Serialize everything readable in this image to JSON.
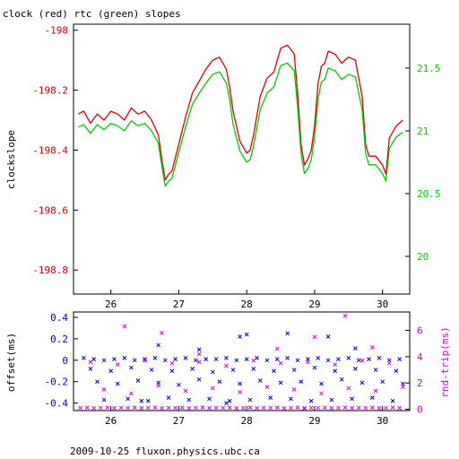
{
  "title": "clock (red) rtc (green) slopes",
  "footer": "2009-10-25 fluxon.physics.ubc.ca",
  "colors": {
    "clock": "#e00000",
    "rtc": "#00cc00",
    "offset": "#0000dd",
    "rnd_trip": "#dd00dd",
    "axis": "#000000",
    "left_ticks_top": "#cc0000",
    "right_ticks_top": "#00cc00",
    "left_ticks_bottom": "#0000cc",
    "right_ticks_bottom": "#cc00cc"
  },
  "chart_data": [
    {
      "type": "line",
      "title": "clock (red) rtc (green) slopes",
      "ylabel": "clockslope",
      "xlim": [
        25.45,
        30.4
      ],
      "ylim": [
        -198.88,
        -197.98
      ],
      "y2lim": [
        19.7,
        21.85
      ],
      "xticks": [
        26,
        27,
        28,
        29,
        30
      ],
      "yticks": [
        -198,
        -198.2,
        -198.4,
        -198.6,
        -198.8
      ],
      "ytick_labels": [
        "-198",
        "-198.2",
        "-198.4",
        "-198.6",
        "-198.8"
      ],
      "y2ticks": [
        20,
        20.5,
        21,
        21.5
      ],
      "y2tick_labels": [
        "20",
        "20.5",
        "21",
        "21.5"
      ],
      "series": [
        {
          "name": "clock",
          "axis": "left",
          "color": "#e00000",
          "x": [
            25.52,
            25.6,
            25.7,
            25.8,
            25.9,
            26.0,
            26.1,
            26.2,
            26.3,
            26.4,
            26.5,
            26.6,
            26.7,
            26.75,
            26.8,
            26.85,
            26.9,
            27.0,
            27.1,
            27.2,
            27.3,
            27.4,
            27.5,
            27.6,
            27.7,
            27.75,
            27.8,
            27.9,
            28.0,
            28.05,
            28.1,
            28.2,
            28.3,
            28.4,
            28.5,
            28.6,
            28.7,
            28.75,
            28.8,
            28.85,
            28.9,
            28.95,
            29.0,
            29.05,
            29.1,
            29.15,
            29.2,
            29.3,
            29.4,
            29.5,
            29.6,
            29.7,
            29.75,
            29.8,
            29.9,
            30.0,
            30.05,
            30.1,
            30.2,
            30.3
          ],
          "y": [
            -198.28,
            -198.27,
            -198.31,
            -198.28,
            -198.3,
            -198.27,
            -198.28,
            -198.3,
            -198.26,
            -198.28,
            -198.27,
            -198.3,
            -198.35,
            -198.43,
            -198.5,
            -198.48,
            -198.47,
            -198.38,
            -198.29,
            -198.21,
            -198.17,
            -198.13,
            -198.1,
            -198.09,
            -198.13,
            -198.19,
            -198.27,
            -198.37,
            -198.41,
            -198.4,
            -198.35,
            -198.22,
            -198.16,
            -198.14,
            -198.06,
            -198.05,
            -198.08,
            -198.21,
            -198.38,
            -198.45,
            -198.43,
            -198.4,
            -198.32,
            -198.18,
            -198.12,
            -198.11,
            -198.07,
            -198.08,
            -198.11,
            -198.09,
            -198.1,
            -198.22,
            -198.38,
            -198.42,
            -198.42,
            -198.45,
            -198.48,
            -198.36,
            -198.32,
            -198.3
          ]
        },
        {
          "name": "rtc",
          "axis": "right",
          "color": "#00cc00",
          "x": [
            25.52,
            25.6,
            25.7,
            25.8,
            25.9,
            26.0,
            26.1,
            26.2,
            26.3,
            26.4,
            26.5,
            26.6,
            26.7,
            26.75,
            26.8,
            26.85,
            26.9,
            27.0,
            27.1,
            27.2,
            27.3,
            27.4,
            27.5,
            27.6,
            27.7,
            27.75,
            27.8,
            27.9,
            28.0,
            28.05,
            28.1,
            28.2,
            28.3,
            28.4,
            28.5,
            28.6,
            28.7,
            28.75,
            28.8,
            28.85,
            28.9,
            28.95,
            29.0,
            29.05,
            29.1,
            29.15,
            29.2,
            29.3,
            29.4,
            29.5,
            29.6,
            29.7,
            29.75,
            29.8,
            29.9,
            30.0,
            30.05,
            30.1,
            30.2,
            30.3
          ],
          "y": [
            21.03,
            21.05,
            20.98,
            21.05,
            21.01,
            21.06,
            21.04,
            21.0,
            21.08,
            21.04,
            21.06,
            21.0,
            20.9,
            20.72,
            20.56,
            20.6,
            20.62,
            20.83,
            21.03,
            21.21,
            21.3,
            21.38,
            21.45,
            21.47,
            21.38,
            21.25,
            21.05,
            20.84,
            20.75,
            20.77,
            20.88,
            21.17,
            21.3,
            21.35,
            21.52,
            21.54,
            21.48,
            21.19,
            20.82,
            20.66,
            20.7,
            20.77,
            20.95,
            21.25,
            21.39,
            21.41,
            21.5,
            21.48,
            21.41,
            21.45,
            21.43,
            21.17,
            20.82,
            20.73,
            20.73,
            20.66,
            20.6,
            20.86,
            20.95,
            20.99
          ]
        }
      ]
    },
    {
      "type": "scatter",
      "ylabel": "offset(ms)",
      "y2label": "rnd-trip(ms)",
      "xlim": [
        25.45,
        30.4
      ],
      "ylim": [
        -0.47,
        0.45
      ],
      "y2lim": [
        -0.1,
        7.4
      ],
      "xticks": [
        26,
        27,
        28,
        29,
        30
      ],
      "yticks": [
        0.4,
        0.2,
        0,
        -0.2,
        -0.4
      ],
      "ytick_labels": [
        "0.4",
        "0.2",
        "0",
        "-0.2",
        "-0.4"
      ],
      "y2ticks": [
        0,
        2,
        4,
        6
      ],
      "y2tick_labels": [
        "0",
        "2",
        "4",
        "6"
      ],
      "series": [
        {
          "name": "offset",
          "axis": "left",
          "marker": "x",
          "color": "#0000dd",
          "x": [
            25.6,
            25.75,
            25.9,
            26.05,
            26.2,
            26.35,
            26.5,
            26.65,
            26.8,
            26.95,
            27.1,
            27.25,
            27.4,
            27.55,
            27.7,
            27.85,
            28.0,
            28.15,
            28.3,
            28.45,
            28.6,
            28.75,
            28.9,
            29.05,
            29.2,
            29.35,
            29.5,
            29.65,
            29.8,
            29.95,
            30.1,
            30.25,
            25.7,
            26.0,
            26.3,
            26.6,
            26.9,
            27.2,
            27.5,
            27.8,
            28.1,
            28.4,
            28.7,
            29.0,
            29.3,
            29.6,
            29.9,
            30.2,
            25.8,
            26.1,
            26.4,
            26.7,
            27.0,
            27.3,
            27.6,
            27.9,
            28.2,
            28.5,
            28.8,
            29.1,
            29.4,
            29.7,
            30.0,
            30.3,
            25.9,
            26.25,
            26.55,
            26.85,
            27.15,
            27.45,
            27.75,
            28.05,
            28.35,
            28.65,
            28.95,
            29.25,
            29.55,
            29.85,
            30.15,
            26.7,
            27.3,
            27.9,
            28.6,
            28.0,
            29.2,
            29.6,
            26.45,
            28.85,
            27.7
          ],
          "y": [
            0.02,
            0.01,
            0.0,
            0.01,
            0.02,
            0.0,
            0.01,
            0.02,
            0.0,
            0.01,
            0.02,
            0.0,
            0.01,
            0.01,
            0.02,
            0.0,
            0.01,
            0.02,
            0.0,
            0.01,
            0.02,
            0.0,
            0.01,
            0.02,
            0.0,
            0.01,
            0.02,
            0.0,
            0.01,
            0.02,
            0.0,
            0.01,
            -0.08,
            -0.1,
            -0.07,
            -0.09,
            -0.1,
            -0.08,
            -0.11,
            -0.09,
            -0.08,
            -0.1,
            -0.09,
            -0.07,
            -0.1,
            -0.08,
            -0.09,
            -0.1,
            -0.2,
            -0.22,
            -0.19,
            -0.21,
            -0.23,
            -0.18,
            -0.2,
            -0.22,
            -0.19,
            -0.21,
            -0.2,
            -0.22,
            -0.18,
            -0.21,
            -0.2,
            -0.22,
            -0.37,
            -0.36,
            -0.38,
            -0.35,
            -0.37,
            -0.36,
            -0.38,
            -0.37,
            -0.35,
            -0.36,
            -0.38,
            -0.37,
            -0.36,
            -0.35,
            -0.38,
            0.14,
            0.1,
            0.22,
            0.25,
            0.24,
            0.22,
            0.11,
            -0.38,
            -0.45,
            -0.4
          ]
        },
        {
          "name": "rnd-trip",
          "axis": "right",
          "marker": "x",
          "color": "#dd00dd",
          "x": [
            25.55,
            25.65,
            25.75,
            25.85,
            25.95,
            26.05,
            26.15,
            26.25,
            26.35,
            26.45,
            26.55,
            26.65,
            26.75,
            26.85,
            26.95,
            27.05,
            27.15,
            27.25,
            27.35,
            27.45,
            27.55,
            27.65,
            27.75,
            27.85,
            27.95,
            28.05,
            28.15,
            28.25,
            28.35,
            28.45,
            28.55,
            28.65,
            28.75,
            28.85,
            28.95,
            29.05,
            29.15,
            29.25,
            29.35,
            29.45,
            29.55,
            29.65,
            29.75,
            29.85,
            29.95,
            30.05,
            30.15,
            30.25,
            25.7,
            26.1,
            26.5,
            26.9,
            27.3,
            27.7,
            28.1,
            28.5,
            28.9,
            29.3,
            29.7,
            30.1,
            25.9,
            26.3,
            26.7,
            27.1,
            27.5,
            27.9,
            28.3,
            28.7,
            29.1,
            29.5,
            29.9,
            30.3,
            26.2,
            26.75,
            27.3,
            28.45,
            29.0,
            29.45,
            29.85
          ],
          "y": [
            0.1,
            0.12,
            0.08,
            0.1,
            0.13,
            0.09,
            0.11,
            0.1,
            0.12,
            0.08,
            0.1,
            0.13,
            0.09,
            0.11,
            0.1,
            0.12,
            0.08,
            0.1,
            0.13,
            0.09,
            0.11,
            0.1,
            0.12,
            0.08,
            0.1,
            0.13,
            0.09,
            0.11,
            0.1,
            0.12,
            0.08,
            0.1,
            0.13,
            0.09,
            0.11,
            0.1,
            0.12,
            0.08,
            0.1,
            0.13,
            0.09,
            0.11,
            0.1,
            0.12,
            0.08,
            0.1,
            0.13,
            0.09,
            3.6,
            3.4,
            3.7,
            3.5,
            3.6,
            3.3,
            3.7,
            3.5,
            3.6,
            3.4,
            3.7,
            3.5,
            1.5,
            1.2,
            1.8,
            1.4,
            1.6,
            1.3,
            1.7,
            1.5,
            1.2,
            1.6,
            1.4,
            1.7,
            6.3,
            5.8,
            4.2,
            4.6,
            5.5,
            7.1,
            4.7
          ]
        }
      ]
    }
  ]
}
